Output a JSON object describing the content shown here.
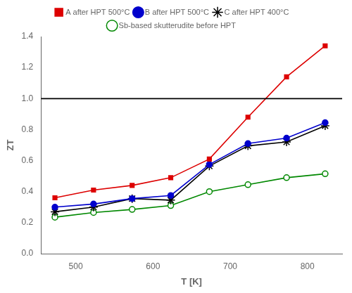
{
  "chart_data": {
    "type": "line",
    "x_label": "T [K]",
    "y_label": "ZT",
    "x": [
      473,
      523,
      573,
      623,
      673,
      723,
      773,
      823
    ],
    "series": [
      {
        "name": "A after HPT 500°C",
        "color": "#dd0000",
        "marker": "square",
        "values": [
          0.36,
          0.41,
          0.44,
          0.49,
          0.61,
          0.88,
          1.14,
          1.34
        ]
      },
      {
        "name": "B after HPT 500°C",
        "color": "#0000cc",
        "marker": "circle",
        "values": [
          0.3,
          0.32,
          0.355,
          0.375,
          0.575,
          0.71,
          0.745,
          0.845
        ]
      },
      {
        "name": "C after HPT 400°C",
        "color": "#000000",
        "marker": "star",
        "values": [
          0.27,
          0.3,
          0.355,
          0.345,
          0.565,
          0.695,
          0.72,
          0.825
        ]
      },
      {
        "name": "Sb-based skutterudite before HPT",
        "color": "#008800",
        "marker": "open_circle",
        "values": [
          0.235,
          0.265,
          0.285,
          0.31,
          0.4,
          0.445,
          0.49,
          0.515
        ]
      }
    ],
    "hline": 1.0,
    "xlim": [
      455,
      845
    ],
    "ylim": [
      0.0,
      1.4
    ],
    "xticks": [
      500,
      600,
      700,
      800
    ],
    "yticks": [
      {
        "value": 0.0,
        "label": "0.0"
      },
      0.2,
      0.4,
      0.6,
      0.8,
      {
        "value": 1.0,
        "label": "1.0"
      },
      1.2,
      1.4
    ],
    "grid": false,
    "legend": "top"
  }
}
